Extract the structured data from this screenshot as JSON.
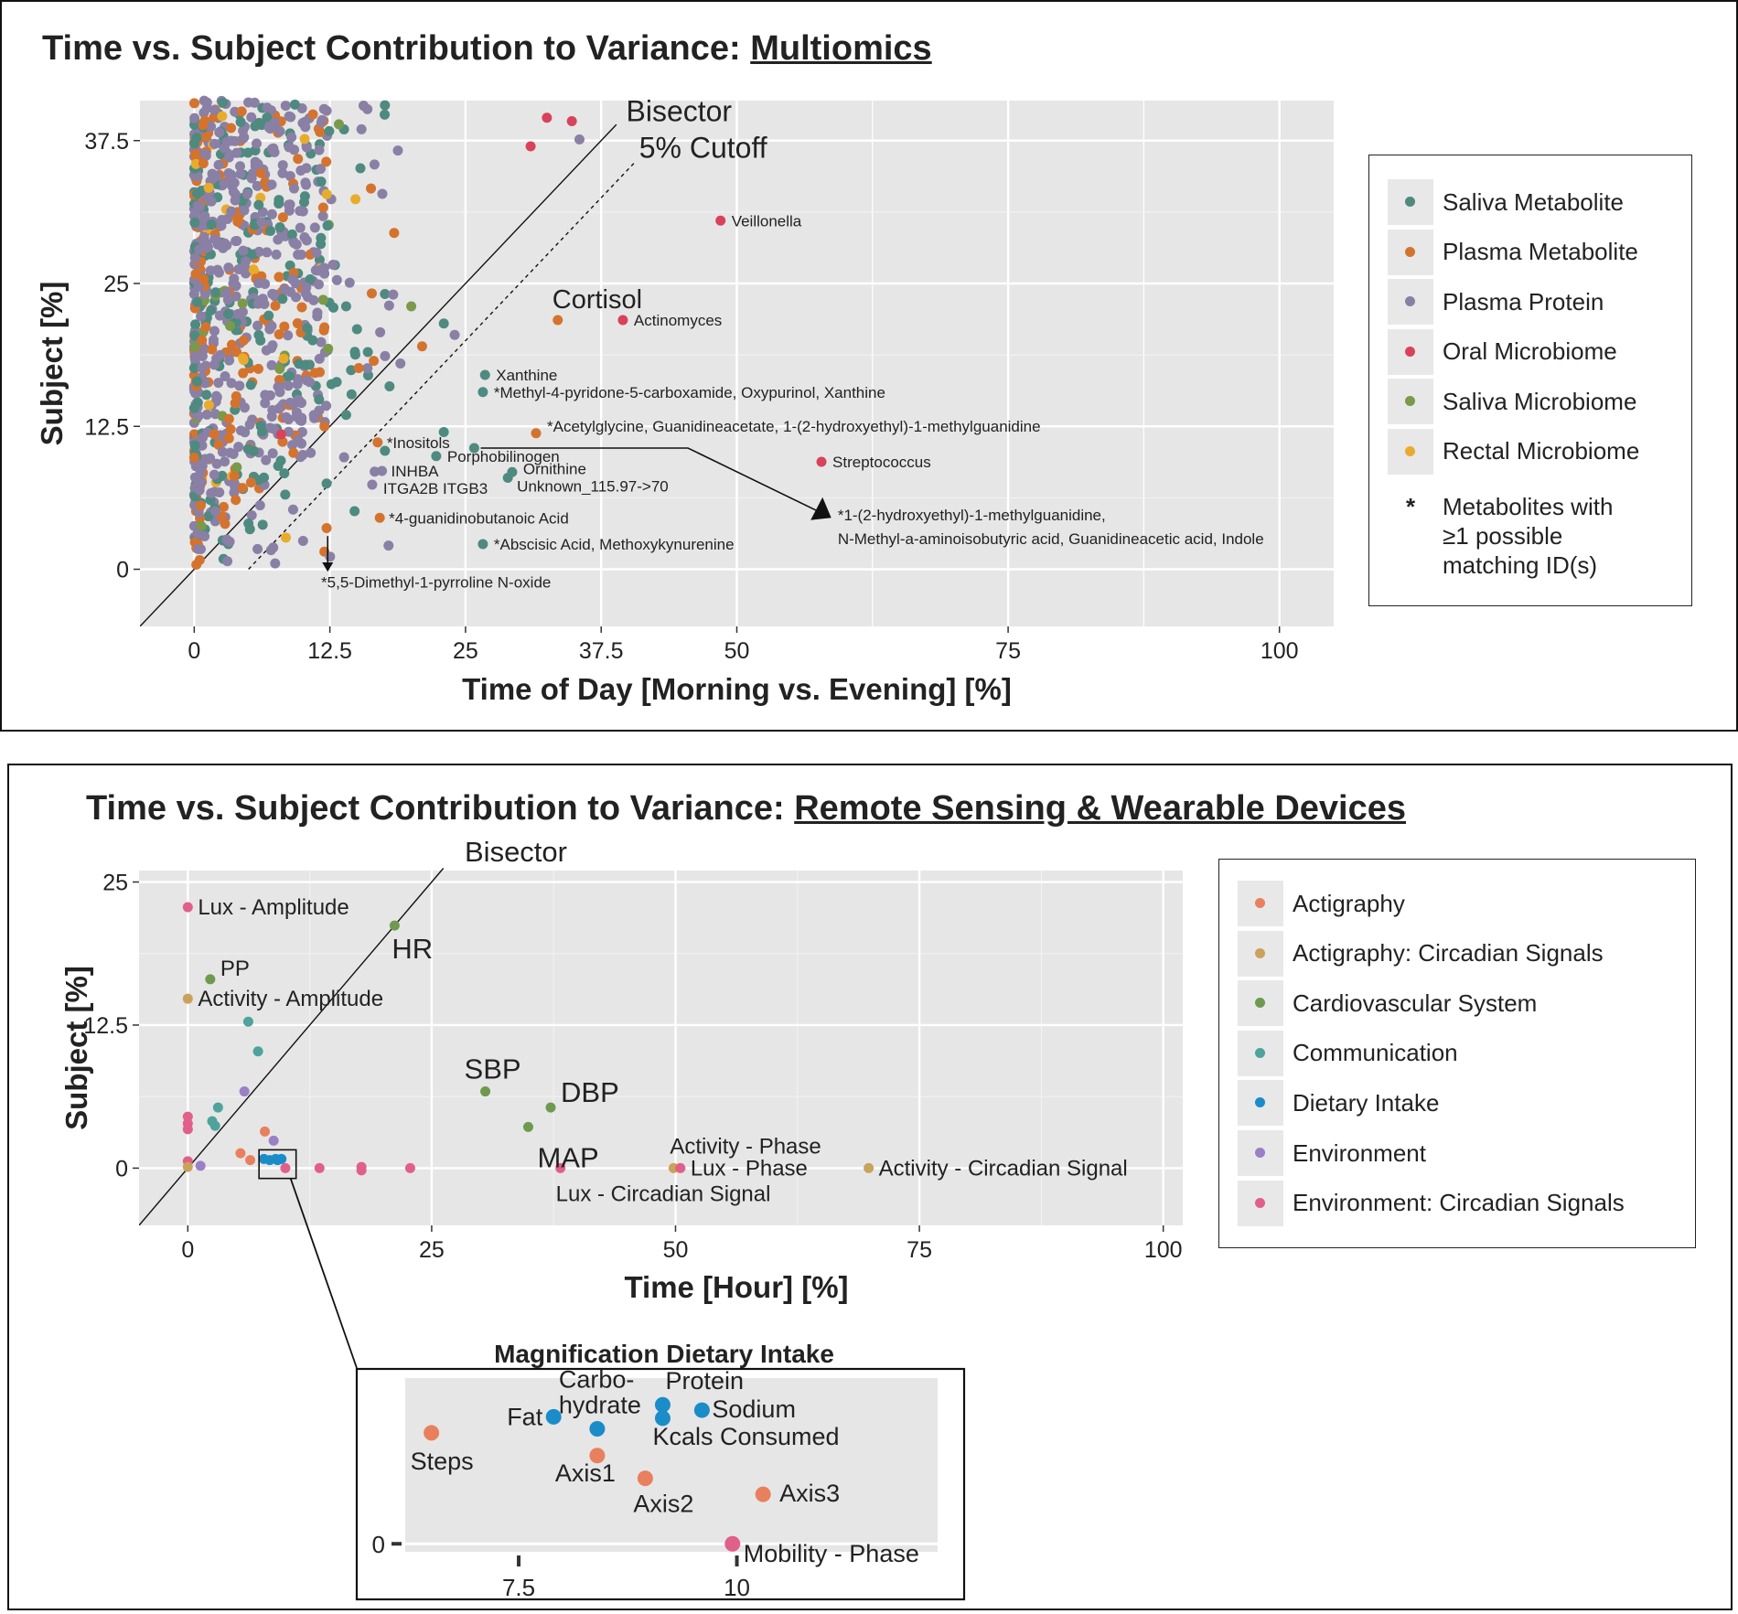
{
  "chart_data": [
    {
      "type": "scatter",
      "title": "Time vs. Subject Contribution to Variance: ",
      "title_underlined": "Multiomics",
      "xlabel": "Time of Day [Morning vs. Evening] [%]",
      "ylabel": "Subject [%]",
      "xlim": [
        -5,
        105
      ],
      "ylim": [
        -5,
        41
      ],
      "x_ticks": [
        "0",
        "12.5",
        "25",
        "37.5",
        "50",
        "75",
        "100"
      ],
      "x_tick_values": [
        0,
        12.5,
        25,
        37.5,
        50,
        75,
        100
      ],
      "y_ticks": [
        "0",
        "12.5",
        "25",
        "37.5"
      ],
      "y_tick_values": [
        0,
        12.5,
        25,
        37.5
      ],
      "grid": true,
      "reference_lines": [
        {
          "label": "Bisector",
          "style": "solid",
          "slope": 1,
          "intercept": 0
        },
        {
          "label": "5% Cutoff",
          "style": "dashed",
          "slope": 1,
          "intercept": -5
        }
      ],
      "legend_position": "right",
      "series": [
        {
          "name": "Saliva Metabolite",
          "color": "#4e8a80"
        },
        {
          "name": "Plasma Metabolite",
          "color": "#d4732e"
        },
        {
          "name": "Plasma Protein",
          "color": "#8a7fa4"
        },
        {
          "name": "Oral Microbiome",
          "color": "#d8425a"
        },
        {
          "name": "Saliva Microbiome",
          "color": "#7a9a4a"
        },
        {
          "name": "Rectal Microbiome",
          "color": "#e8ac2c"
        }
      ],
      "legend_note": [
        "Metabolites with",
        "≥1 possible",
        "matching ID(s)"
      ],
      "legend_note_symbol": "*",
      "labeled_points": [
        {
          "label": "Veillonella",
          "x": 48.5,
          "y": 30.5,
          "series": "Oral Microbiome"
        },
        {
          "label": "Cortisol",
          "x": 33.5,
          "y": 21.8,
          "series": "Plasma Metabolite",
          "large": true
        },
        {
          "label": "Actinomyces",
          "x": 39.5,
          "y": 21.8,
          "series": "Oral Microbiome"
        },
        {
          "label": "Xanthine",
          "x": 26.8,
          "y": 17.0,
          "series": "Saliva Metabolite"
        },
        {
          "label": "*Methyl-4-pyridone-5-carboxamide, Oxypurinol, Xanthine",
          "x": 26.6,
          "y": 15.5,
          "series": "Saliva Metabolite"
        },
        {
          "label": "*Acetylglycine, Guanidineacetate, 1-(2-hydroxyethyl)-1-methylguanidine",
          "x": 31.5,
          "y": 11.9,
          "series": "Plasma Metabolite"
        },
        {
          "label": "*Inositols",
          "x": 16.9,
          "y": 11.1,
          "series": "Plasma Metabolite"
        },
        {
          "label": "Porphobilinogen",
          "x": 22.3,
          "y": 9.9,
          "series": "Saliva Metabolite"
        },
        {
          "label": "INHBA",
          "x": 17.3,
          "y": 8.6,
          "series": "Plasma Protein"
        },
        {
          "label": "ITGA2B ITGB3",
          "x": 16.4,
          "y": 7.4,
          "series": "Plasma Protein"
        },
        {
          "label": "Ornithine",
          "x": 29.3,
          "y": 8.5,
          "series": "Saliva Metabolite"
        },
        {
          "label": "Unknown_115.97->70",
          "x": 28.9,
          "y": 8.0,
          "series": "Saliva Metabolite"
        },
        {
          "label": "Streptococcus",
          "x": 57.8,
          "y": 9.4,
          "series": "Oral Microbiome"
        },
        {
          "label": "*4-guanidinobutanoic Acid",
          "x": 17.1,
          "y": 4.5,
          "series": "Plasma Metabolite"
        },
        {
          "label": "*Abscisic Acid, Methoxykynurenine",
          "x": 26.6,
          "y": 2.2,
          "series": "Saliva Metabolite"
        },
        {
          "label": "*5,5-Dimethyl-1-pyrroline N-oxide",
          "x": 12.2,
          "y": 3.6,
          "series": "Plasma Metabolite"
        },
        {
          "label": "*1-(2-hydroxyethyl)-1-methylguanidine,",
          "label2": "N-Methyl-a-aminoisobutyric acid, Guanidineacetic acid, Indole",
          "x": 25.8,
          "y": 10.6,
          "series": "Saliva Metabolite"
        }
      ],
      "points_note": "dense cloud of several hundred points at x 0–20, y 0–41 (values estimated)"
    },
    {
      "type": "scatter",
      "title": "Time vs. Subject Contribution to Variance: ",
      "title_underlined": "Remote Sensing & Wearable Devices",
      "xlabel": "Time [Hour] [%]",
      "ylabel": "Subject [%]",
      "xlim": [
        -5,
        102
      ],
      "ylim": [
        -5,
        26
      ],
      "x_ticks": [
        "0",
        "25",
        "50",
        "75",
        "100"
      ],
      "x_tick_values": [
        0,
        25,
        50,
        75,
        100
      ],
      "y_ticks": [
        "0",
        "12.5",
        "25"
      ],
      "y_tick_values": [
        0,
        12.5,
        25
      ],
      "grid": true,
      "reference_lines": [
        {
          "label": "Bisector",
          "style": "solid",
          "slope": 1,
          "intercept": 0
        }
      ],
      "legend_position": "right",
      "series": [
        {
          "name": "Actigraphy",
          "color": "#e8805e"
        },
        {
          "name": "Actigraphy: Circadian Signals",
          "color": "#c9a25c"
        },
        {
          "name": "Cardiovascular System",
          "color": "#6e9a50"
        },
        {
          "name": "Communication",
          "color": "#4ea39c"
        },
        {
          "name": "Dietary Intake",
          "color": "#1a8cc8"
        },
        {
          "name": "Environment",
          "color": "#9a80c4"
        },
        {
          "name": "Environment: Circadian Signals",
          "color": "#e0608a"
        }
      ],
      "points": [
        {
          "x": 0,
          "y": 22.8,
          "s": 6,
          "label": "Lux - Amplitude"
        },
        {
          "x": 21.2,
          "y": 21.2,
          "s": 2,
          "label": "HR",
          "large": true
        },
        {
          "x": 2.3,
          "y": 16.5,
          "s": 2,
          "label": "PP",
          "large": true
        },
        {
          "x": 0,
          "y": 14.8,
          "s": 1,
          "label": "Activity - Amplitude"
        },
        {
          "x": 6.2,
          "y": 12.8,
          "s": 3
        },
        {
          "x": 7.2,
          "y": 10.2,
          "s": 3
        },
        {
          "x": 3.1,
          "y": 5.3,
          "s": 3
        },
        {
          "x": 2.5,
          "y": 4.1,
          "s": 3
        },
        {
          "x": 2.8,
          "y": 3.7,
          "s": 3
        },
        {
          "x": 5.8,
          "y": 6.7,
          "s": 5
        },
        {
          "x": 30.5,
          "y": 6.7,
          "s": 2,
          "label": "SBP",
          "large": true
        },
        {
          "x": 37.2,
          "y": 5.3,
          "s": 2,
          "label": "DBP",
          "large": true
        },
        {
          "x": 34.9,
          "y": 3.6,
          "s": 2,
          "label": "MAP",
          "large": true
        },
        {
          "x": 0,
          "y": 4.5,
          "s": 6
        },
        {
          "x": 0,
          "y": 3.9,
          "s": 6
        },
        {
          "x": 0,
          "y": 3.4,
          "s": 6
        },
        {
          "x": 0,
          "y": 0.6,
          "s": 6
        },
        {
          "x": 0,
          "y": 0.1,
          "s": 1
        },
        {
          "x": 1.3,
          "y": 0.2,
          "s": 5
        },
        {
          "x": 5.4,
          "y": 1.3,
          "s": 0
        },
        {
          "x": 6.4,
          "y": 0.7,
          "s": 0
        },
        {
          "x": 7.9,
          "y": 3.2,
          "s": 0
        },
        {
          "x": 8.8,
          "y": 2.4,
          "s": 5
        },
        {
          "x": 10.0,
          "y": 0.0,
          "s": 6
        },
        {
          "x": 13.5,
          "y": 0.0,
          "s": 6
        },
        {
          "x": 17.8,
          "y": 0.1,
          "s": 6
        },
        {
          "x": 17.8,
          "y": -0.2,
          "s": 6
        },
        {
          "x": 22.8,
          "y": 0.0,
          "s": 6
        },
        {
          "x": 38.2,
          "y": 0.0,
          "s": 6,
          "label": "Lux - Circadian Signal"
        },
        {
          "x": 49.8,
          "y": 0.0,
          "s": 1,
          "label": "Activity - Phase"
        },
        {
          "x": 50.5,
          "y": 0.0,
          "s": 6,
          "label": "Lux - Phase"
        },
        {
          "x": 69.8,
          "y": 0.0,
          "s": 1,
          "label": "Activity - Circadian Signal"
        },
        {
          "x": 7.8,
          "y": 0.8,
          "s": 4
        },
        {
          "x": 8.4,
          "y": 0.7,
          "s": 4
        },
        {
          "x": 9.0,
          "y": 0.8,
          "s": 4
        },
        {
          "x": 9.2,
          "y": 0.7,
          "s": 4
        },
        {
          "x": 9.6,
          "y": 0.8,
          "s": 4
        }
      ],
      "inset": {
        "title": "Magnification Dietary Intake",
        "x_ticks": [
          "7.5",
          "10"
        ],
        "x_tick_values": [
          7.5,
          10
        ],
        "y_ticks": [
          "0"
        ],
        "y_tick_values": [
          0
        ],
        "xlim": [
          6.2,
          12.3
        ],
        "ylim": [
          -0.06,
          1.24
        ],
        "points": [
          {
            "label": "Steps",
            "x": 6.5,
            "y": 0.83,
            "s": 0
          },
          {
            "label": "Fat",
            "x": 7.9,
            "y": 0.95,
            "s": 4
          },
          {
            "label": "Carbo-",
            "label2": "hydrate",
            "x": 8.4,
            "y": 0.86,
            "s": 4
          },
          {
            "label": "Axis1",
            "x": 8.4,
            "y": 0.66,
            "s": 0
          },
          {
            "label": "Protein",
            "x": 9.15,
            "y": 1.04,
            "s": 4
          },
          {
            "label": "Kcals Consumed",
            "x": 9.15,
            "y": 0.94,
            "s": 4
          },
          {
            "label": "Sodium",
            "x": 9.6,
            "y": 1.0,
            "s": 4
          },
          {
            "label": "Axis2",
            "x": 8.95,
            "y": 0.49,
            "s": 0
          },
          {
            "label": "Axis3",
            "x": 10.3,
            "y": 0.37,
            "s": 0
          },
          {
            "label": "Mobility - Phase",
            "x": 9.95,
            "y": 0.0,
            "s": 6
          }
        ]
      }
    }
  ]
}
